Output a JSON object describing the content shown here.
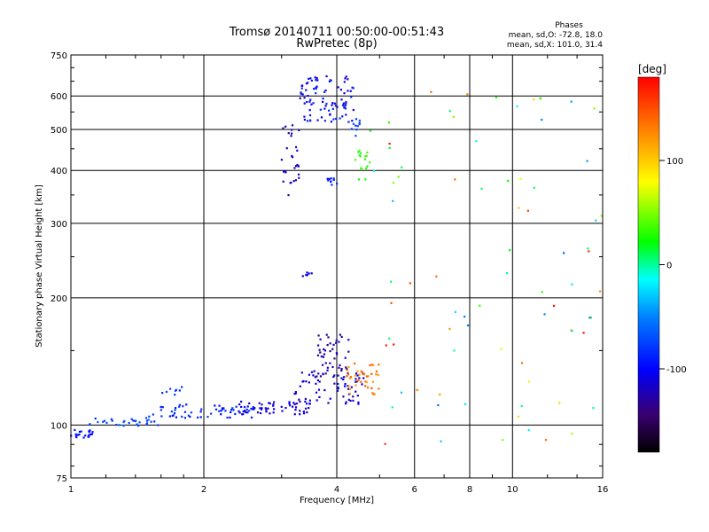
{
  "chart_data": {
    "type": "scatter",
    "title": "Tromsø 20140711 00:50:00-00:51:43",
    "subtitle": "RwPretec (8p)",
    "xlabel": "Frequency [MHz]",
    "ylabel": "Stationary phase Virtual Height [km]",
    "x_scale": "log",
    "y_scale": "log",
    "xlim": [
      1,
      16
    ],
    "ylim": [
      75,
      750
    ],
    "x_ticks": [
      1,
      2,
      4,
      6,
      8,
      10,
      16
    ],
    "x_tick_labels": [
      "1",
      "2",
      "4",
      "6",
      "8",
      "10",
      "16"
    ],
    "y_ticks": [
      75,
      100,
      200,
      300,
      400,
      500,
      600,
      750
    ],
    "y_tick_labels": [
      "75",
      "100",
      "200",
      "300",
      "400",
      "500",
      "600",
      "750"
    ],
    "grid": true,
    "stats": {
      "heading": "Phases",
      "line_o": "mean, sd,O: -72.8, 18.0",
      "line_x": "mean, sd,X: 101.0, 31.4"
    },
    "colorbar": {
      "label": "[deg]",
      "range": [
        -180,
        180
      ],
      "ticks": [
        100,
        0,
        -100
      ],
      "tick_labels": [
        "100",
        "0",
        "-100"
      ]
    },
    "point_groups": [
      {
        "f_range": [
          1.0,
          1.12
        ],
        "h_range": [
          93,
          98
        ],
        "n": 22,
        "phase": -95,
        "phase_sd": 8
      },
      {
        "f_range": [
          1.1,
          1.6
        ],
        "h_range": [
          99,
          104
        ],
        "n": 30,
        "phase": -75,
        "phase_sd": 12
      },
      {
        "f_range": [
          1.5,
          2.6
        ],
        "h_range": [
          104,
          112
        ],
        "n": 60,
        "phase": -88,
        "phase_sd": 15
      },
      {
        "f_range": [
          2.4,
          3.5
        ],
        "h_range": [
          106,
          114
        ],
        "n": 55,
        "phase": -110,
        "phase_sd": 12
      },
      {
        "f_range": [
          3.2,
          4.6
        ],
        "h_range": [
          112,
          135
        ],
        "n": 70,
        "phase": -115,
        "phase_sd": 14
      },
      {
        "f_range": [
          3.6,
          4.3
        ],
        "h_range": [
          130,
          168
        ],
        "n": 45,
        "phase": -125,
        "phase_sd": 15
      },
      {
        "f_range": [
          4.2,
          5.0
        ],
        "h_range": [
          118,
          140
        ],
        "n": 40,
        "phase": 130,
        "phase_sd": 18
      },
      {
        "f_range": [
          1.6,
          1.8
        ],
        "h_range": [
          118,
          124
        ],
        "n": 8,
        "phase": -80,
        "phase_sd": 10
      },
      {
        "f_range": [
          3.0,
          3.3
        ],
        "h_range": [
          340,
          520
        ],
        "n": 30,
        "phase": -120,
        "phase_sd": 10
      },
      {
        "f_range": [
          3.3,
          4.4
        ],
        "h_range": [
          520,
          670
        ],
        "n": 90,
        "phase": -100,
        "phase_sd": 20
      },
      {
        "f_range": [
          3.8,
          4.0
        ],
        "h_range": [
          370,
          385
        ],
        "n": 10,
        "phase": -90,
        "phase_sd": 10
      },
      {
        "f_range": [
          4.4,
          4.75
        ],
        "h_range": [
          380,
          450
        ],
        "n": 16,
        "phase": 30,
        "phase_sd": 15
      },
      {
        "f_range": [
          4.3,
          4.55
        ],
        "h_range": [
          480,
          530
        ],
        "n": 10,
        "phase": -75,
        "phase_sd": 10
      },
      {
        "f_range": [
          3.35,
          3.55
        ],
        "h_range": [
          225,
          230
        ],
        "n": 6,
        "phase": -110,
        "phase_sd": 8
      },
      {
        "f_range": [
          4.5,
          16
        ],
        "h_range": [
          90,
          650
        ],
        "n": 80,
        "phase": 60,
        "phase_sd": 120
      }
    ]
  }
}
